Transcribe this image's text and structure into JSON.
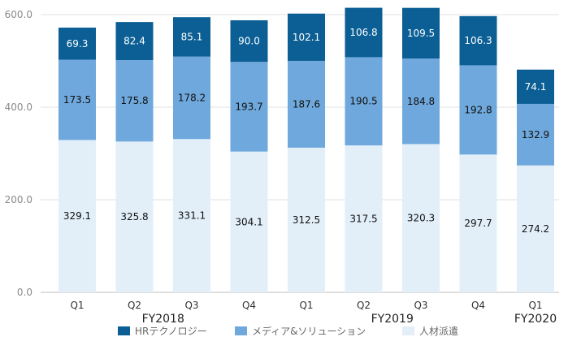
{
  "chart_data": {
    "type": "bar",
    "stacked": true,
    "categories": [
      "Q1",
      "Q2",
      "Q3",
      "Q4",
      "Q1",
      "Q2",
      "Q3",
      "Q4",
      "Q1"
    ],
    "groups": [
      {
        "label": "FY2018",
        "categories": [
          0,
          1,
          2,
          3
        ]
      },
      {
        "label": "FY2019",
        "categories": [
          4,
          5,
          6,
          7
        ]
      },
      {
        "label": "FY2020",
        "categories": [
          8
        ]
      }
    ],
    "series": [
      {
        "name": "人材派遣",
        "color": "#e2eff9",
        "label_color": "#111111",
        "values": [
          329.1,
          325.8,
          331.1,
          304.1,
          312.5,
          317.5,
          320.3,
          297.7,
          274.2
        ]
      },
      {
        "name": "メディア&ソリューション",
        "color": "#6fa8dc",
        "label_color": "#111111",
        "values": [
          173.5,
          175.8,
          178.2,
          193.7,
          187.6,
          190.5,
          184.8,
          192.8,
          132.9
        ]
      },
      {
        "name": "HRテクノロジー",
        "color": "#0b5f95",
        "label_color": "#ffffff",
        "values": [
          69.3,
          82.4,
          85.1,
          90.0,
          102.1,
          106.8,
          109.5,
          106.3,
          74.1
        ]
      }
    ],
    "legend_order": [
      "HRテクノロジー",
      "メディア&ソリューション",
      "人材派遣"
    ],
    "ylim": [
      0,
      600
    ],
    "yticks": [
      "0.0",
      "200.0",
      "400.0",
      "600.0"
    ],
    "grid": true,
    "legend": "bottom",
    "title": "",
    "xlabel": "",
    "ylabel": ""
  }
}
